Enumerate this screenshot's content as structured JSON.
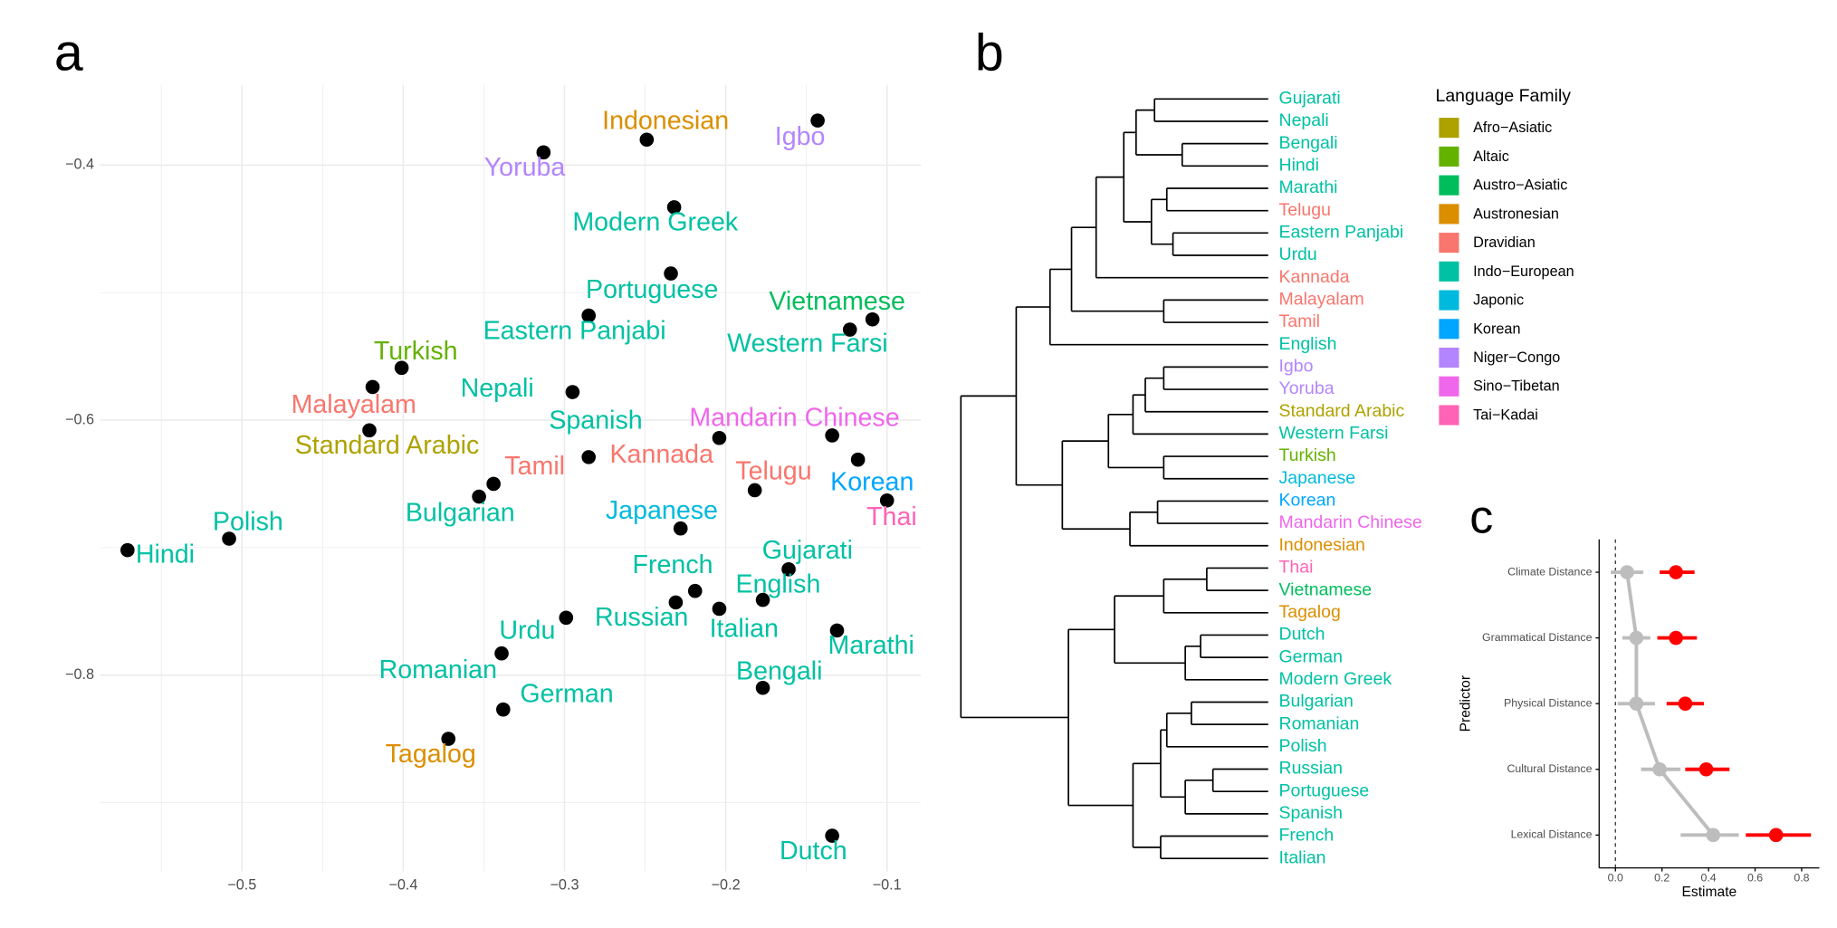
{
  "chart_data": [
    {
      "type": "scatter",
      "panel_label": "a",
      "labels": [
        "Hindi",
        "Polish",
        "Bulgarian",
        "Tamil",
        "Malayalam",
        "Standard Arabic",
        "Turkish",
        "Nepali",
        "Eastern Panjabi",
        "Portuguese",
        "Yoruba",
        "Indonesian",
        "Igbo",
        "Modern Greek",
        "Vietnamese",
        "Western Farsi",
        "Spanish",
        "Kannada",
        "Mandarin Chinese",
        "Korean",
        "Telugu",
        "Thai",
        "Japanese",
        "Gujarati",
        "French",
        "English",
        "Russian",
        "Italian",
        "Urdu",
        "Marathi",
        "Romanian",
        "Bengali",
        "German",
        "Tagalog",
        "Dutch"
      ],
      "x": [
        -0.571,
        -0.508,
        -0.353,
        -0.344,
        -0.419,
        -0.421,
        -0.401,
        -0.295,
        -0.285,
        -0.234,
        -0.313,
        -0.249,
        -0.143,
        -0.232,
        -0.109,
        -0.123,
        -0.285,
        -0.204,
        -0.134,
        -0.118,
        -0.182,
        -0.1,
        -0.228,
        -0.161,
        -0.219,
        -0.177,
        -0.231,
        -0.204,
        -0.299,
        -0.131,
        -0.339,
        -0.177,
        -0.338,
        -0.372,
        -0.134
      ],
      "y": [
        -0.702,
        -0.693,
        -0.66,
        -0.65,
        -0.574,
        -0.608,
        -0.559,
        -0.578,
        -0.518,
        -0.485,
        -0.39,
        -0.38,
        -0.365,
        -0.433,
        -0.521,
        -0.529,
        -0.629,
        -0.614,
        -0.612,
        -0.631,
        -0.655,
        -0.663,
        -0.685,
        -0.717,
        -0.734,
        -0.741,
        -0.743,
        -0.748,
        -0.755,
        -0.765,
        -0.783,
        -0.81,
        -0.827,
        -0.85,
        -0.926
      ],
      "colors": [
        "#00C1A3",
        "#00C1A3",
        "#00C1A3",
        "#F8766D",
        "#F8766D",
        "#AEA200",
        "#64B200",
        "#00C1A3",
        "#00C1A3",
        "#00C1A3",
        "#B385FF",
        "#DB8E00",
        "#B385FF",
        "#00C1A3",
        "#00BD5C",
        "#00C1A3",
        "#00C1A3",
        "#F8766D",
        "#EF67EB",
        "#00A6FF",
        "#F8766D",
        "#FF63B6",
        "#00BADE",
        "#00C1A3",
        "#00C1A3",
        "#00C1A3",
        "#00C1A3",
        "#00C1A3",
        "#00C1A3",
        "#00C1A3",
        "#00C1A3",
        "#00C1A3",
        "#00C1A3",
        "#DB8E00",
        "#00C1A3"
      ],
      "point_color": "#000000",
      "xlim": [
        -0.588,
        -0.079
      ],
      "ylim": [
        -0.954,
        -0.337
      ],
      "xticks": [
        {
          "value": -0.5,
          "label": "−0.5"
        },
        {
          "value": -0.4,
          "label": "−0.4"
        },
        {
          "value": -0.3,
          "label": "−0.3"
        },
        {
          "value": -0.2,
          "label": "−0.2"
        },
        {
          "value": -0.1,
          "label": "−0.1"
        }
      ],
      "yticks": [
        {
          "value": -0.4,
          "label": "−0.4"
        },
        {
          "value": -0.6,
          "label": "−0.6"
        },
        {
          "value": -0.8,
          "label": "−0.8"
        }
      ],
      "x_minor_grid": [
        -0.55,
        -0.45,
        -0.35,
        -0.25,
        -0.15
      ],
      "y_minor_grid": [
        -0.5,
        -0.7,
        -0.9
      ],
      "grid": true
    },
    {
      "type": "dendrogram",
      "panel_label": "b",
      "tree": {
        "height": 1.0,
        "children": [
          {
            "height": 0.82,
            "children": [
              {
                "height": 0.71,
                "children": [
                  {
                    "height": 0.64,
                    "children": [
                      {
                        "height": 0.56,
                        "children": [
                          {
                            "height": 0.47,
                            "children": [
                              {
                                "height": 0.43,
                                "children": [
                                  {
                                    "height": 0.37,
                                    "children": [
                                      {
                                        "name": "Gujarati",
                                        "color": "#00C1A3"
                                      },
                                      {
                                        "name": "Nepali",
                                        "color": "#00C1A3"
                                      }
                                    ]
                                  },
                                  {
                                    "height": 0.28,
                                    "children": [
                                      {
                                        "name": "Bengali",
                                        "color": "#00C1A3"
                                      },
                                      {
                                        "name": "Hindi",
                                        "color": "#00C1A3"
                                      }
                                    ]
                                  }
                                ]
                              },
                              {
                                "height": 0.38,
                                "children": [
                                  {
                                    "height": 0.33,
                                    "children": [
                                      {
                                        "name": "Marathi",
                                        "color": "#00C1A3"
                                      },
                                      {
                                        "name": "Telugu",
                                        "color": "#F8766D"
                                      }
                                    ]
                                  },
                                  {
                                    "height": 0.31,
                                    "children": [
                                      {
                                        "name": "Eastern Panjabi",
                                        "color": "#00C1A3"
                                      },
                                      {
                                        "name": "Urdu",
                                        "color": "#00C1A3"
                                      }
                                    ]
                                  }
                                ]
                              }
                            ]
                          },
                          {
                            "name": "Kannada",
                            "color": "#F8766D"
                          }
                        ]
                      },
                      {
                        "height": 0.34,
                        "children": [
                          {
                            "name": "Malayalam",
                            "color": "#F8766D"
                          },
                          {
                            "name": "Tamil",
                            "color": "#F8766D"
                          }
                        ]
                      }
                    ]
                  },
                  {
                    "name": "English",
                    "color": "#00C1A3"
                  }
                ]
              },
              {
                "height": 0.67,
                "children": [
                  {
                    "height": 0.52,
                    "children": [
                      {
                        "height": 0.44,
                        "children": [
                          {
                            "height": 0.4,
                            "children": [
                              {
                                "height": 0.34,
                                "children": [
                                  {
                                    "name": "Igbo",
                                    "color": "#B385FF"
                                  },
                                  {
                                    "name": "Yoruba",
                                    "color": "#B385FF"
                                  }
                                ]
                              },
                              {
                                "name": "Standard Arabic",
                                "color": "#AEA200"
                              }
                            ]
                          },
                          {
                            "name": "Western Farsi",
                            "color": "#00C1A3"
                          }
                        ]
                      },
                      {
                        "height": 0.34,
                        "children": [
                          {
                            "name": "Turkish",
                            "color": "#64B200"
                          },
                          {
                            "name": "Japanese",
                            "color": "#00BADE"
                          }
                        ]
                      }
                    ]
                  },
                  {
                    "height": 0.45,
                    "children": [
                      {
                        "height": 0.36,
                        "children": [
                          {
                            "name": "Korean",
                            "color": "#00A6FF"
                          },
                          {
                            "name": "Mandarin Chinese",
                            "color": "#EF67EB"
                          }
                        ]
                      },
                      {
                        "name": "Indonesian",
                        "color": "#DB8E00"
                      }
                    ]
                  }
                ]
              }
            ]
          },
          {
            "height": 0.65,
            "children": [
              {
                "height": 0.5,
                "children": [
                  {
                    "height": 0.34,
                    "children": [
                      {
                        "height": 0.2,
                        "children": [
                          {
                            "name": "Thai",
                            "color": "#FF63B6"
                          },
                          {
                            "name": "Vietnamese",
                            "color": "#00BD5C"
                          }
                        ]
                      },
                      {
                        "name": "Tagalog",
                        "color": "#DB8E00"
                      }
                    ]
                  },
                  {
                    "height": 0.27,
                    "children": [
                      {
                        "height": 0.22,
                        "children": [
                          {
                            "name": "Dutch",
                            "color": "#00C1A3"
                          },
                          {
                            "name": "German",
                            "color": "#00C1A3"
                          }
                        ]
                      },
                      {
                        "name": "Modern Greek",
                        "color": "#00C1A3"
                      }
                    ]
                  }
                ]
              },
              {
                "height": 0.44,
                "children": [
                  {
                    "height": 0.35,
                    "children": [
                      {
                        "height": 0.33,
                        "children": [
                          {
                            "height": 0.25,
                            "children": [
                              {
                                "name": "Bulgarian",
                                "color": "#00C1A3"
                              },
                              {
                                "name": "Romanian",
                                "color": "#00C1A3"
                              }
                            ]
                          },
                          {
                            "name": "Polish",
                            "color": "#00C1A3"
                          }
                        ]
                      },
                      {
                        "height": 0.27,
                        "children": [
                          {
                            "height": 0.18,
                            "children": [
                              {
                                "name": "Russian",
                                "color": "#00C1A3"
                              },
                              {
                                "name": "Portuguese",
                                "color": "#00C1A3"
                              }
                            ]
                          },
                          {
                            "name": "Spanish",
                            "color": "#00C1A3"
                          }
                        ]
                      }
                    ]
                  },
                  {
                    "height": 0.35,
                    "children": [
                      {
                        "name": "French",
                        "color": "#00C1A3"
                      },
                      {
                        "name": "Italian",
                        "color": "#00C1A3"
                      }
                    ]
                  }
                ]
              }
            ]
          }
        ]
      },
      "legend": {
        "title": "Language Family",
        "items": [
          {
            "name": "Afro−Asiatic",
            "color": "#AEA200"
          },
          {
            "name": "Altaic",
            "color": "#64B200"
          },
          {
            "name": "Austro−Asiatic",
            "color": "#00BD5C"
          },
          {
            "name": "Austronesian",
            "color": "#DB8E00"
          },
          {
            "name": "Dravidian",
            "color": "#F8766D"
          },
          {
            "name": "Indo−European",
            "color": "#00C1A3"
          },
          {
            "name": "Japonic",
            "color": "#00BADE"
          },
          {
            "name": "Korean",
            "color": "#00A6FF"
          },
          {
            "name": "Niger−Congo",
            "color": "#B385FF"
          },
          {
            "name": "Sino−Tibetan",
            "color": "#EF67EB"
          },
          {
            "name": "Tai−Kadai",
            "color": "#FF63B6"
          }
        ]
      }
    },
    {
      "type": "dot_errorbar",
      "panel_label": "c",
      "categories": [
        "Climate Distance",
        "Grammatical Distance",
        "Physical Distance",
        "Cultural Distance",
        "Lexical Distance"
      ],
      "y_label": "Predictor",
      "x_label": "Estimate",
      "series": [
        {
          "color": "#BDBDBD",
          "connected": true,
          "values": [
            0.05,
            0.09,
            0.09,
            0.19,
            0.42
          ],
          "lower": [
            -0.02,
            0.03,
            0.01,
            0.11,
            0.28
          ],
          "upper": [
            0.12,
            0.15,
            0.17,
            0.28,
            0.53
          ]
        },
        {
          "color": "#FF0000",
          "connected": false,
          "values": [
            0.26,
            0.26,
            0.3,
            0.39,
            0.69
          ],
          "lower": [
            0.19,
            0.18,
            0.22,
            0.3,
            0.56
          ],
          "upper": [
            0.34,
            0.35,
            0.38,
            0.49,
            0.84
          ]
        }
      ],
      "xlim": [
        -0.07,
        0.876
      ],
      "xticks": [
        {
          "value": 0,
          "label": "0.0"
        },
        0.2,
        0.4,
        0.6,
        0.8
      ],
      "reference_line": 0
    }
  ]
}
